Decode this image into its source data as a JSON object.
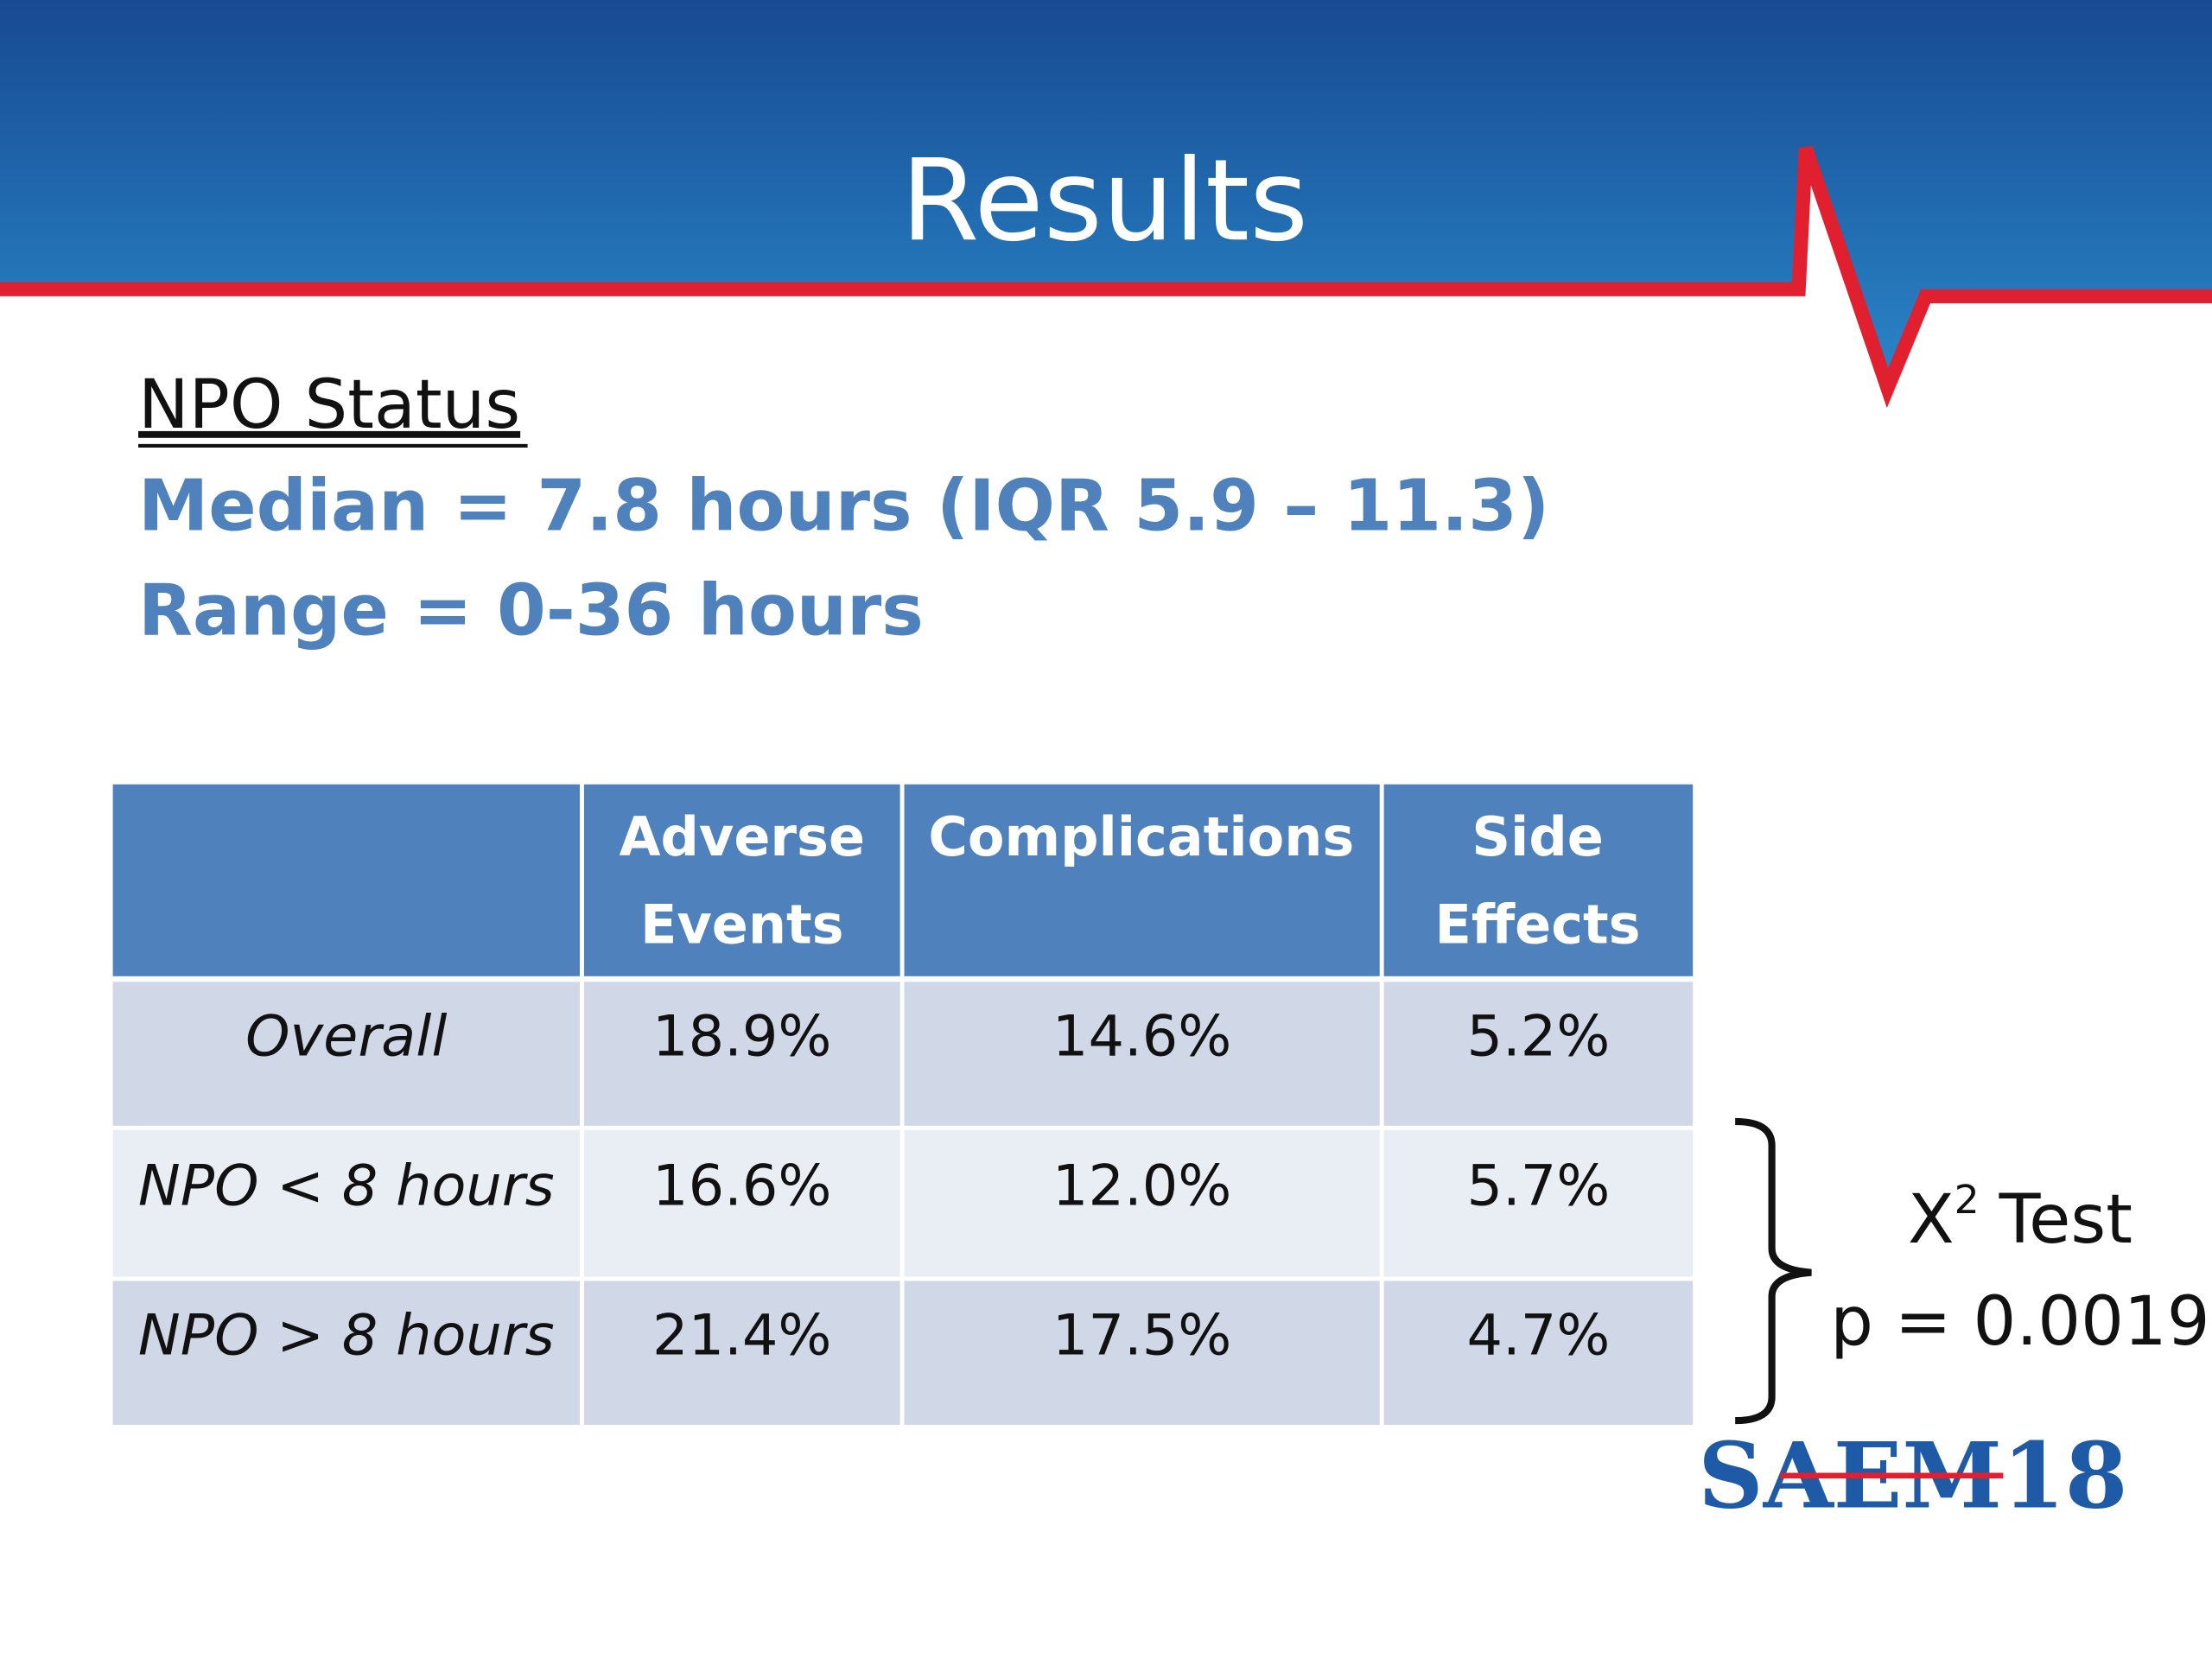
{
  "header": {
    "title": "Results"
  },
  "subtitle": "NPO Status",
  "lines": [
    "Median = 7.8 hours (IQR 5.9 – 11.3)",
    "Range = 0-36 hours"
  ],
  "table": {
    "columns": [
      [
        "Adverse",
        "Events"
      ],
      [
        "Complications"
      ],
      [
        "Side",
        "Effects"
      ]
    ],
    "rows": [
      {
        "label": "Overall",
        "values": [
          "18.9%",
          "14.6%",
          "5.2%"
        ]
      },
      {
        "label": "NPO < 8 hours",
        "values": [
          "16.6%",
          "12.0%",
          "5.7%"
        ]
      },
      {
        "label": "NPO > 8 hours",
        "values": [
          "21.4%",
          "17.5%",
          "4.7%"
        ]
      }
    ]
  },
  "test": {
    "name": "X",
    "superscript": "2",
    "suffix": "Test",
    "p": "p = 0.0019"
  },
  "logo": "SAEM18"
}
